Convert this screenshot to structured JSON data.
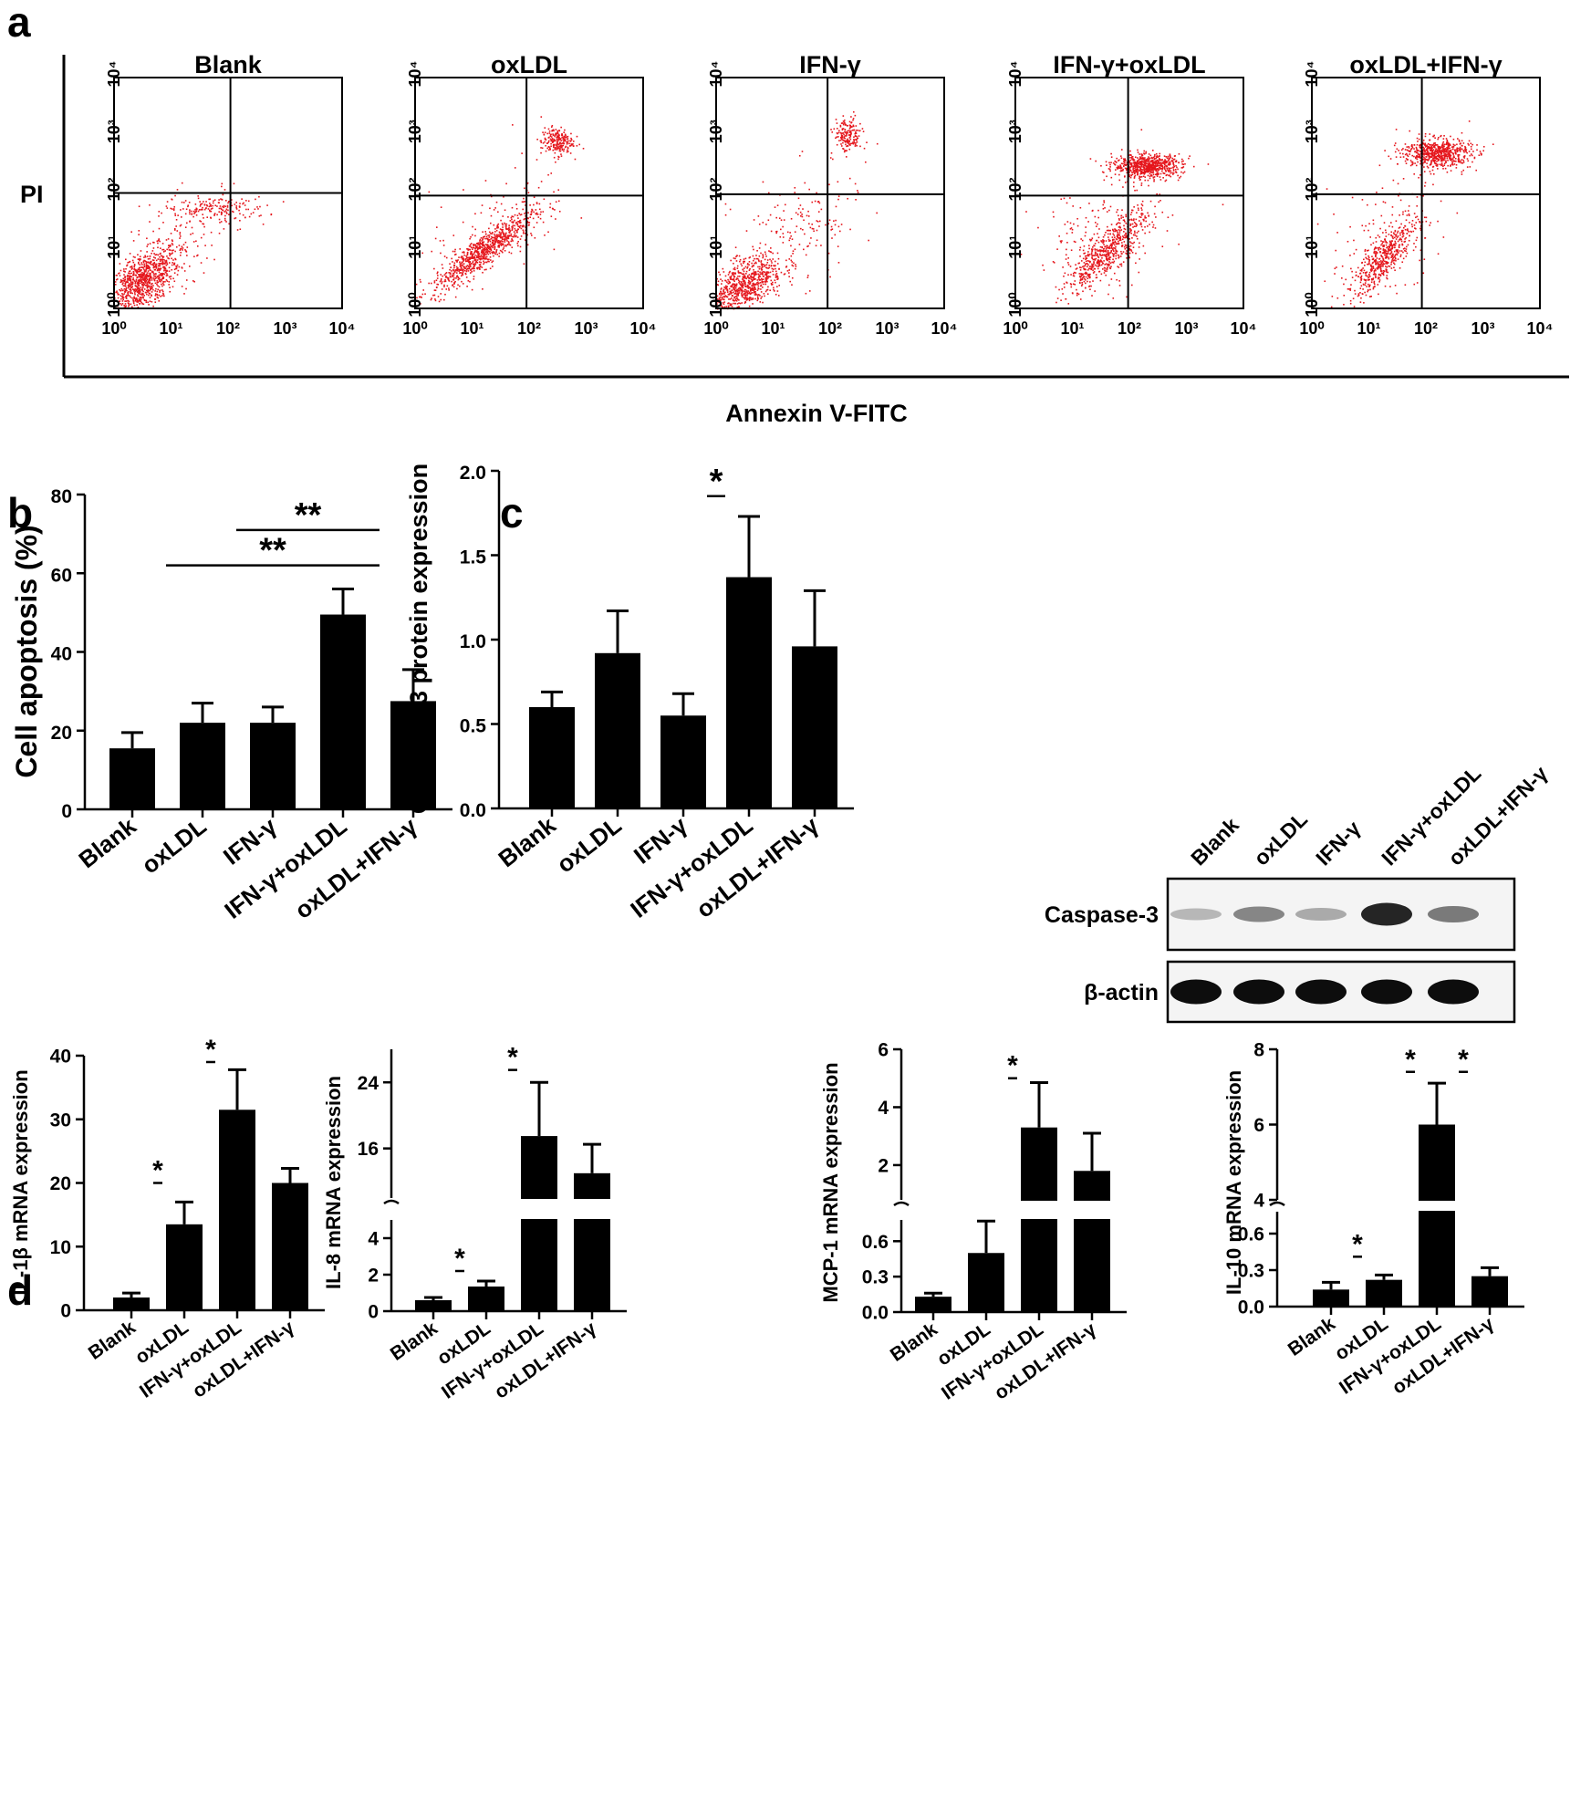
{
  "panel_labels": [
    "a",
    "b",
    "c",
    "d"
  ],
  "chart_data": [
    {
      "type": "scatter",
      "panel": "a",
      "xlabel": "Annexin V-FITC",
      "ylabel": "PI",
      "scale": "log",
      "tick_labels": [
        "10⁰",
        "10¹",
        "10²",
        "10³",
        "10⁴"
      ],
      "xlim": [
        1,
        10000
      ],
      "ylim": [
        1,
        10000
      ],
      "plots": [
        {
          "title": "Blank",
          "gate": [
            110,
            100
          ],
          "clusters": [
            {
              "cx": 3,
              "cy": 3,
              "sx": 0.33,
              "sy": 0.3,
              "n": 900,
              "rho": 0.6
            },
            {
              "cx": 60,
              "cy": 55,
              "sx": 0.45,
              "sy": 0.1,
              "n": 160,
              "rho": 0.0
            },
            {
              "cx": 20,
              "cy": 20,
              "sx": 0.5,
              "sy": 0.45,
              "n": 120,
              "rho": 0.5
            }
          ]
        },
        {
          "title": "oxLDL",
          "gate": [
            90,
            90
          ],
          "clusters": [
            {
              "cx": 15,
              "cy": 10,
              "sx": 0.45,
              "sy": 0.35,
              "n": 850,
              "rho": 0.9
            },
            {
              "cx": 300,
              "cy": 800,
              "sx": 0.14,
              "sy": 0.12,
              "n": 220,
              "rho": 0.0
            },
            {
              "cx": 30,
              "cy": 30,
              "sx": 0.6,
              "sy": 0.5,
              "n": 100,
              "rho": 0.4
            }
          ]
        },
        {
          "title": "IFN-γ",
          "gate": [
            90,
            95
          ],
          "clusters": [
            {
              "cx": 3,
              "cy": 2.5,
              "sx": 0.35,
              "sy": 0.28,
              "n": 800,
              "rho": 0.6
            },
            {
              "cx": 200,
              "cy": 1000,
              "sx": 0.12,
              "sy": 0.15,
              "n": 180,
              "rho": 0.0
            },
            {
              "cx": 25,
              "cy": 25,
              "sx": 0.55,
              "sy": 0.5,
              "n": 150,
              "rho": 0.3
            }
          ]
        },
        {
          "title": "IFN-γ+oxLDL",
          "gate": [
            95,
            90
          ],
          "clusters": [
            {
              "cx": 40,
              "cy": 10,
              "sx": 0.35,
              "sy": 0.35,
              "n": 550,
              "rho": 0.85
            },
            {
              "cx": 200,
              "cy": 300,
              "sx": 0.3,
              "sy": 0.1,
              "n": 700,
              "rho": 0.0
            },
            {
              "cx": 30,
              "cy": 15,
              "sx": 0.6,
              "sy": 0.55,
              "n": 200,
              "rho": 0.3
            }
          ]
        },
        {
          "title": "oxLDL+IFN-γ",
          "gate": [
            85,
            95
          ],
          "clusters": [
            {
              "cx": 18,
              "cy": 8,
              "sx": 0.3,
              "sy": 0.35,
              "n": 500,
              "rho": 0.85
            },
            {
              "cx": 150,
              "cy": 500,
              "sx": 0.3,
              "sy": 0.13,
              "n": 650,
              "rho": 0.0
            },
            {
              "cx": 20,
              "cy": 20,
              "sx": 0.5,
              "sy": 0.5,
              "n": 120,
              "rho": 0.3
            }
          ]
        }
      ]
    },
    {
      "type": "bar",
      "panel": "b",
      "ylabel": "Cell apoptosis (%)",
      "ylim": [
        0,
        80
      ],
      "yticks": [
        0,
        20,
        40,
        60,
        80
      ],
      "categories": [
        "Blank",
        "oxLDL",
        "IFN-γ",
        "IFN-γ+oxLDL",
        "oxLDL+IFN-γ"
      ],
      "values": [
        15.5,
        22.0,
        22.0,
        49.5,
        27.5
      ],
      "errors": [
        4.0,
        5.0,
        4.0,
        6.5,
        8.0
      ],
      "significance": [
        {
          "from": 2,
          "to": 3,
          "label": "**",
          "y": 71
        },
        {
          "from": 1,
          "to": 3,
          "label": "**",
          "y": 62
        }
      ]
    },
    {
      "type": "bar",
      "panel": "c",
      "ylabel": "Caspase-3 protein expression",
      "ylim": [
        0,
        2
      ],
      "yticks": [
        "0.0",
        "0.5",
        "1.0",
        "1.5",
        "2.0"
      ],
      "categories": [
        "Blank",
        "oxLDL",
        "IFN-γ",
        "IFN-γ+oxLDL",
        "oxLDL+IFN-γ"
      ],
      "values": [
        0.6,
        0.92,
        0.55,
        1.37,
        0.96
      ],
      "errors": [
        0.09,
        0.25,
        0.13,
        0.36,
        0.33
      ],
      "significance": [
        {
          "from": 2,
          "to": 3,
          "label": "*",
          "y": 1.85
        }
      ]
    },
    {
      "type": "bar",
      "panel": "d",
      "ylabel": "IL-1β mRNA expression",
      "ylim": [
        0,
        40
      ],
      "yticks": [
        0,
        10,
        20,
        30,
        40
      ],
      "categories": [
        "Blank",
        "oxLDL",
        "IFN-γ+oxLDL",
        "oxLDL+IFN-γ"
      ],
      "values": [
        2.0,
        13.5,
        31.5,
        20.0
      ],
      "errors": [
        0.7,
        3.5,
        6.3,
        2.3
      ],
      "significance": [
        {
          "from": 0,
          "to": 1,
          "label": "*",
          "y": 20
        },
        {
          "from": 1,
          "to": 2,
          "label": "*",
          "y": 39
        }
      ]
    },
    {
      "type": "bar",
      "panel": "d",
      "ylabel": "IL-8 mRNA expression",
      "broken_axis": true,
      "lower_range": [
        0,
        5
      ],
      "lower_ticks": [
        0,
        2,
        4
      ],
      "upper_range": [
        10,
        28
      ],
      "upper_ticks": [
        16,
        24
      ],
      "categories": [
        "Blank",
        "oxLDL",
        "IFN-γ+oxLDL",
        "oxLDL+IFN-γ"
      ],
      "values": [
        0.6,
        1.35,
        17.5,
        13.0
      ],
      "errors": [
        0.15,
        0.3,
        6.5,
        3.5
      ],
      "significance": [
        {
          "from": 0,
          "to": 1,
          "label": "*",
          "y": 2.2,
          "segment": "lower"
        },
        {
          "from": 1,
          "to": 2,
          "label": "*",
          "y": 25.5,
          "segment": "upper"
        }
      ]
    },
    {
      "type": "bar",
      "panel": "d",
      "ylabel": "MCP-1 mRNA expression",
      "broken_axis": true,
      "lower_range": [
        0,
        0.78
      ],
      "lower_ticks": [
        "0.0",
        "0.3",
        "0.6"
      ],
      "upper_range": [
        0.8,
        6
      ],
      "upper_ticks": [
        2,
        4,
        6
      ],
      "categories": [
        "Blank",
        "oxLDL",
        "IFN-γ+oxLDL",
        "oxLDL+IFN-γ"
      ],
      "values": [
        0.13,
        0.5,
        3.3,
        1.8
      ],
      "errors": [
        0.03,
        0.27,
        1.55,
        1.3
      ],
      "significance": [
        {
          "from": 1,
          "to": 2,
          "label": "*",
          "y": 5.0,
          "segment": "upper"
        }
      ]
    },
    {
      "type": "bar",
      "panel": "d",
      "ylabel": "IL-10 mRNA expression",
      "broken_axis": true,
      "lower_range": [
        0,
        0.78
      ],
      "lower_ticks": [
        "0.0",
        "0.3",
        "0.6"
      ],
      "upper_range": [
        4,
        8
      ],
      "upper_ticks": [
        4,
        6,
        8
      ],
      "categories": [
        "Blank",
        "oxLDL",
        "IFN-γ+oxLDL",
        "oxLDL+IFN-γ"
      ],
      "values": [
        0.14,
        0.22,
        6.0,
        0.25
      ],
      "errors": [
        0.06,
        0.04,
        1.1,
        0.07
      ],
      "significance": [
        {
          "from": 0,
          "to": 1,
          "label": "*",
          "y": 0.41,
          "segment": "lower"
        },
        {
          "from": 1,
          "to": 2,
          "label": "*",
          "y": 7.4,
          "segment": "upper"
        },
        {
          "from": 2,
          "to": 3,
          "label": "*",
          "y": 7.4,
          "segment": "upper"
        }
      ]
    }
  ],
  "western_blot": {
    "lanes": [
      "Blank",
      "oxLDL",
      "IFN-γ",
      "IFN-γ+oxLDL",
      "oxLDL+IFN-γ"
    ],
    "rows": [
      {
        "label": "Caspase-3",
        "intensity": [
          0.25,
          0.45,
          0.3,
          0.85,
          0.5
        ]
      },
      {
        "label": "β-actin",
        "intensity": [
          0.95,
          0.95,
          0.95,
          0.95,
          0.95
        ]
      }
    ]
  }
}
